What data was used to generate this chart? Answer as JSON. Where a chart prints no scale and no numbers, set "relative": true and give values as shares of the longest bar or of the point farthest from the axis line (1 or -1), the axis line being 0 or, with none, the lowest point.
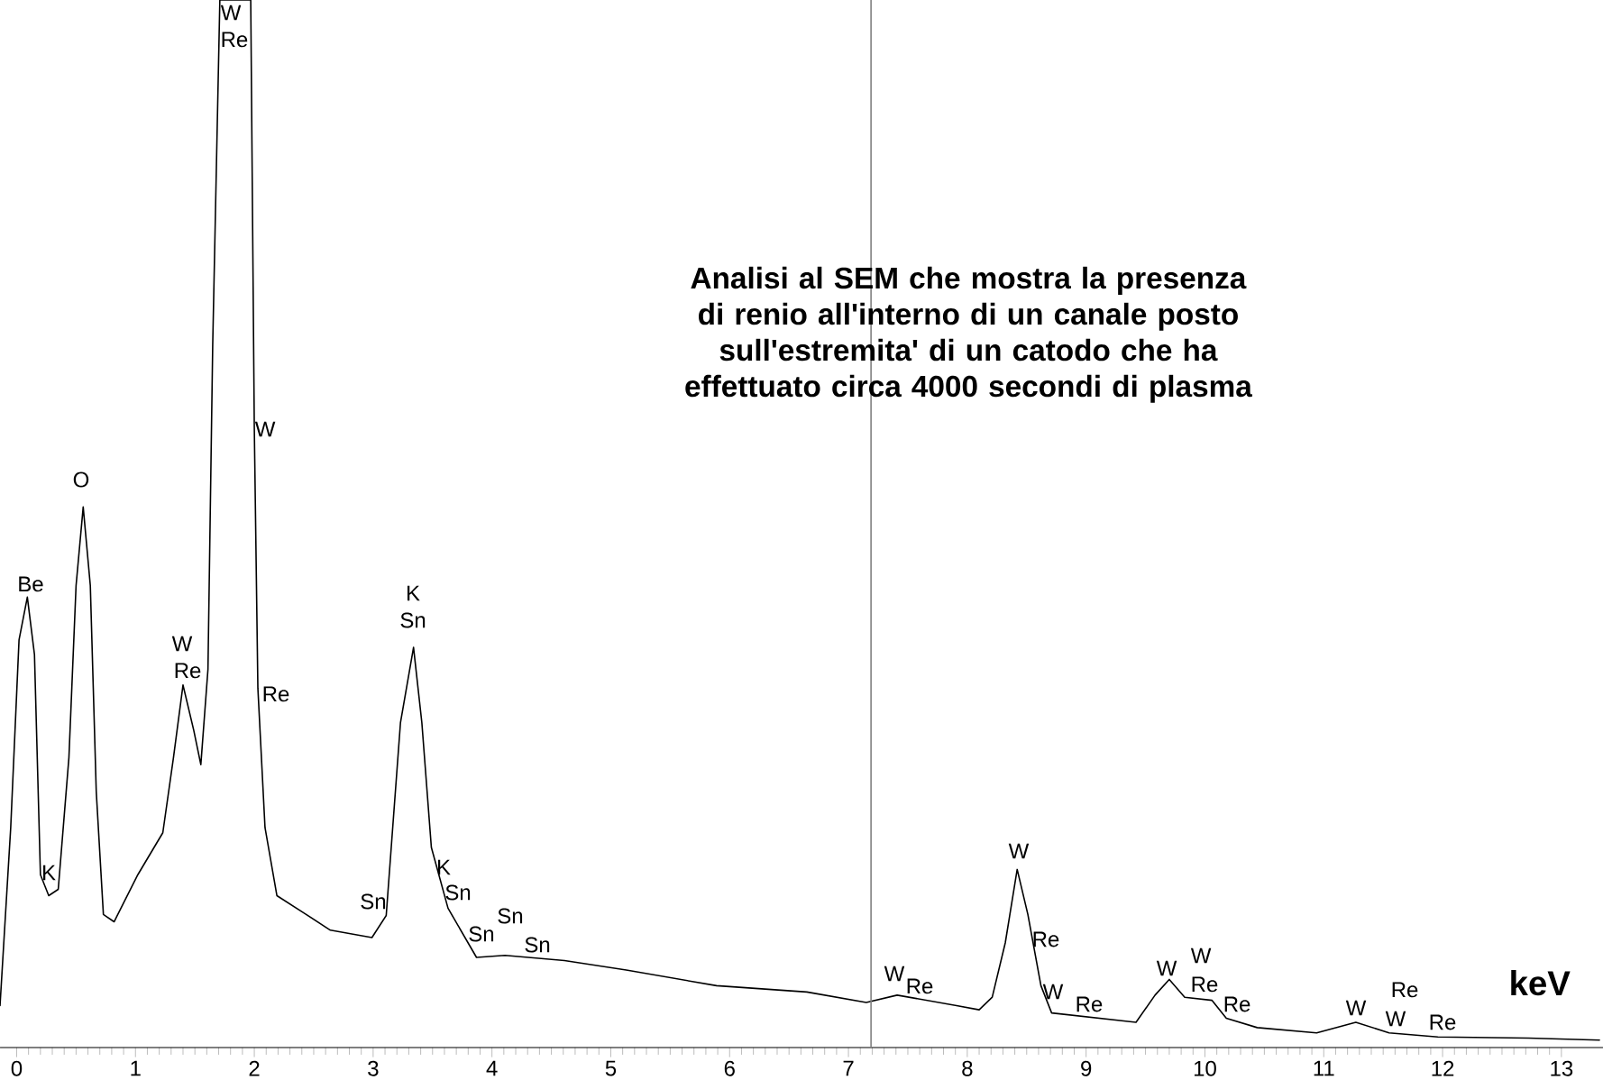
{
  "chart_data": {
    "type": "line",
    "relative": true,
    "title": "Analisi al SEM che mostra la presenza di renio all'interno di un canale posto sull'estremita' di un catodo che ha effettuato circa 4000 secondi di plasma",
    "xlabel": "keV",
    "x": [
      -0.14,
      -0.05,
      0.02,
      0.09,
      0.15,
      0.2,
      0.27,
      0.35,
      0.44,
      0.5,
      0.56,
      0.62,
      0.67,
      0.73,
      0.82,
      1.02,
      1.23,
      1.32,
      1.4,
      1.49,
      1.55,
      1.61,
      1.65,
      1.71,
      1.97,
      2.0,
      2.03,
      2.09,
      2.19,
      2.41,
      2.64,
      2.99,
      3.11,
      3.23,
      3.34,
      3.41,
      3.49,
      3.63,
      3.87,
      4.11,
      4.61,
      5.13,
      5.89,
      6.65,
      7.15,
      7.41,
      7.91,
      8.1,
      8.21,
      8.32,
      8.42,
      8.51,
      8.62,
      8.71,
      9.42,
      9.58,
      9.7,
      9.83,
      10.06,
      10.18,
      10.44,
      10.94,
      11.27,
      11.55,
      11.96,
      12.72,
      13.32
    ],
    "series": [
      {
        "color": "#000000",
        "values": [
          0.04,
          0.21,
          0.389,
          0.43,
          0.375,
          0.165,
          0.145,
          0.151,
          0.277,
          0.441,
          0.516,
          0.441,
          0.244,
          0.127,
          0.12,
          0.165,
          0.205,
          0.277,
          0.346,
          0.303,
          0.27,
          0.361,
          0.671,
          1,
          1,
          0.592,
          0.343,
          0.21,
          0.145,
          0.129,
          0.112,
          0.105,
          0.126,
          0.31,
          0.382,
          0.31,
          0.191,
          0.133,
          0.086,
          0.088,
          0.083,
          0.074,
          0.059,
          0.053,
          0.043,
          0.05,
          0.04,
          0.036,
          0.048,
          0.1,
          0.17,
          0.127,
          0.059,
          0.033,
          0.024,
          0.05,
          0.065,
          0.048,
          0.045,
          0.028,
          0.019,
          0.014,
          0.024,
          0.014,
          0.01,
          0.009,
          0.007
        ]
      }
    ],
    "xlim": [
      -0.14,
      13.35
    ],
    "xticks": [
      0,
      1,
      2,
      3,
      4,
      5,
      6,
      7,
      8,
      9,
      10,
      11,
      12,
      13
    ],
    "ref_lines": [
      {
        "axis": "x",
        "value": 7.19,
        "color": "#808080"
      }
    ],
    "grid": false,
    "marker": "none",
    "line_style": "solid",
    "annotations": [
      "Be",
      "K",
      "O",
      "W",
      "Re",
      "W",
      "Re",
      "W",
      "Re",
      "K",
      "Sn",
      "Sn",
      "K",
      "Sn",
      "Sn",
      "Sn",
      "Sn",
      "W",
      "Re",
      "W",
      "Re",
      "W",
      "Re",
      "W",
      "W",
      "Re",
      "Re",
      "W",
      "Re",
      "W",
      "Re"
    ]
  }
}
